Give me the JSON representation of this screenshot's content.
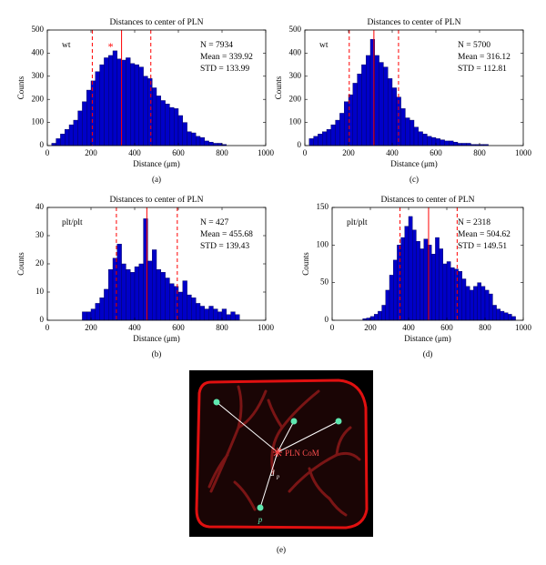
{
  "chart_data": [
    {
      "type": "histogram",
      "title": "Distances to center of PLN",
      "xlabel": "Distance (μm)",
      "ylabel": "Counts",
      "caption": "(a)",
      "group": "wt",
      "stat_labels": [
        "N = 7934",
        "Mean = 339.92",
        "STD = 133.99"
      ],
      "mean": 339.92,
      "std": 133.99,
      "asterisk": {
        "text": "*",
        "x": 290,
        "y": 425
      },
      "color": "#0000c8",
      "line_color": "#ff0000",
      "xlim": [
        0,
        1000
      ],
      "xticks": [
        0,
        200,
        400,
        600,
        800,
        1000
      ],
      "ylim": [
        0,
        500
      ],
      "yticks": [
        0,
        100,
        200,
        300,
        400,
        500
      ],
      "bins": [
        20,
        40,
        60,
        80,
        100,
        120,
        140,
        160,
        180,
        200,
        220,
        240,
        260,
        280,
        300,
        320,
        340,
        360,
        380,
        400,
        420,
        440,
        460,
        480,
        500,
        520,
        540,
        560,
        580,
        600,
        620,
        640,
        660,
        680,
        700,
        720,
        740,
        760,
        780,
        800,
        820
      ],
      "counts": [
        10,
        30,
        50,
        70,
        90,
        110,
        150,
        190,
        240,
        280,
        320,
        350,
        380,
        390,
        410,
        375,
        370,
        380,
        355,
        350,
        340,
        300,
        290,
        250,
        215,
        195,
        180,
        165,
        160,
        130,
        100,
        60,
        55,
        40,
        35,
        20,
        15,
        10,
        10,
        5
      ]
    },
    {
      "type": "histogram",
      "title": "Distances to center of PLN",
      "xlabel": "Distance (μm)",
      "ylabel": "Counts",
      "caption": "(c)",
      "group": "wt",
      "stat_labels": [
        "N = 5700",
        "Mean = 316.12",
        "STD = 112.81"
      ],
      "mean": 316.12,
      "std": 112.81,
      "color": "#0000c8",
      "line_color": "#ff0000",
      "xlim": [
        0,
        1000
      ],
      "xticks": [
        0,
        200,
        400,
        600,
        800,
        1000
      ],
      "ylim": [
        0,
        500
      ],
      "yticks": [
        0,
        100,
        200,
        300,
        400,
        500
      ],
      "bins": [
        20,
        40,
        60,
        80,
        100,
        120,
        140,
        160,
        180,
        200,
        220,
        240,
        260,
        280,
        300,
        320,
        340,
        360,
        380,
        400,
        420,
        440,
        460,
        480,
        500,
        520,
        540,
        560,
        580,
        600,
        620,
        640,
        660,
        680,
        700,
        720,
        740,
        760,
        780,
        800,
        820,
        840
      ],
      "counts": [
        30,
        40,
        50,
        60,
        70,
        90,
        110,
        140,
        190,
        220,
        270,
        310,
        350,
        390,
        460,
        390,
        360,
        340,
        290,
        250,
        210,
        160,
        120,
        110,
        80,
        60,
        50,
        40,
        35,
        30,
        25,
        20,
        20,
        15,
        10,
        10,
        10,
        5,
        5,
        5,
        5
      ]
    },
    {
      "type": "histogram",
      "title": "Distances to center of PLN",
      "xlabel": "Distance (μm)",
      "ylabel": "Counts",
      "caption": "(b)",
      "group": "plt/plt",
      "stat_labels": [
        "N = 427",
        "Mean = 455.68",
        "STD = 139.43"
      ],
      "mean": 455.68,
      "std": 139.43,
      "color": "#0000c8",
      "line_color": "#ff0000",
      "xlim": [
        0,
        1000
      ],
      "xticks": [
        0,
        200,
        400,
        600,
        800,
        1000
      ],
      "ylim": [
        0,
        40
      ],
      "yticks": [
        0,
        10,
        20,
        30,
        40
      ],
      "bins": [
        160,
        180,
        200,
        220,
        240,
        260,
        280,
        300,
        320,
        340,
        360,
        380,
        400,
        420,
        440,
        460,
        480,
        500,
        520,
        540,
        560,
        580,
        600,
        620,
        640,
        660,
        680,
        700,
        720,
        740,
        760,
        780,
        800,
        820,
        840,
        860,
        880
      ],
      "counts": [
        3,
        3,
        4,
        6,
        8,
        11,
        18,
        22,
        27,
        20,
        18,
        17,
        19,
        20,
        36,
        21,
        25,
        18,
        17,
        15,
        13,
        12,
        10,
        14,
        9,
        8,
        6,
        5,
        4,
        5,
        4,
        3,
        4,
        2,
        3,
        2
      ]
    },
    {
      "type": "histogram",
      "title": "Distances to center of PLN",
      "xlabel": "Distance (μm)",
      "ylabel": "Counts",
      "caption": "(d)",
      "group": "plt/plt",
      "stat_labels": [
        "N = 2318",
        "Mean = 504.62",
        "STD = 149.51"
      ],
      "mean": 504.62,
      "std": 149.51,
      "color": "#0000c8",
      "line_color": "#ff0000",
      "xlim": [
        0,
        1000
      ],
      "xticks": [
        0,
        200,
        400,
        600,
        800,
        1000
      ],
      "ylim": [
        0,
        150
      ],
      "yticks": [
        0,
        50,
        100,
        150
      ],
      "bins": [
        160,
        180,
        200,
        220,
        240,
        260,
        280,
        300,
        320,
        340,
        360,
        380,
        400,
        420,
        440,
        460,
        480,
        500,
        520,
        540,
        560,
        580,
        600,
        620,
        640,
        660,
        680,
        700,
        720,
        740,
        760,
        780,
        800,
        820,
        840,
        860,
        880,
        900,
        920,
        940,
        960
      ],
      "counts": [
        2,
        3,
        5,
        8,
        12,
        20,
        40,
        60,
        80,
        100,
        110,
        125,
        138,
        120,
        105,
        95,
        108,
        100,
        88,
        110,
        95,
        75,
        78,
        70,
        68,
        65,
        55,
        45,
        40,
        45,
        50,
        45,
        40,
        35,
        20,
        15,
        12,
        10,
        8,
        5
      ]
    }
  ],
  "diagram": {
    "center_label": "PLN CoM",
    "distance_label": "d",
    "distance_subscript": "p",
    "point_label": "p",
    "caption": "(e)"
  }
}
